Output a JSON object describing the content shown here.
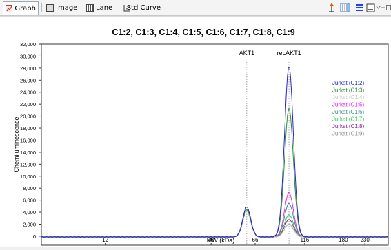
{
  "tabs": [
    {
      "label": "Graph",
      "icon": "graph-icon",
      "active": true
    },
    {
      "label": "Image",
      "icon": "image-icon",
      "active": false
    },
    {
      "label": "Lane",
      "icon": "lane-icon",
      "active": false
    },
    {
      "label": "Std Curve",
      "icon": "std-curve-icon",
      "active": false
    }
  ],
  "toolbar": {
    "icons": [
      "peak-marker-icon",
      "lane-select-icon",
      "legend-toggle-icon",
      "box-select-icon",
      "dropdown-icon",
      "minimize-icon",
      "maximize-icon"
    ]
  },
  "colors": {
    "accent": "#1f3fff",
    "tab_border": "#9aa7b5"
  },
  "chart_data": {
    "type": "line",
    "title": "C1:2, C1:3, C1:4, C1:5, C1:6, C1:7, C1:8, C1:9",
    "xlabel": "MW (kDa)",
    "ylabel": "Chemiluminescence",
    "ylim": [
      -1500,
      32000
    ],
    "xscale": "log",
    "xlim": [
      5.8,
      300
    ],
    "x_ticks": [
      12,
      40,
      66,
      116,
      180,
      230
    ],
    "y_ticks": [
      0,
      2000,
      4000,
      6000,
      8000,
      10000,
      12000,
      14000,
      16000,
      18000,
      20000,
      22000,
      24000,
      26000,
      28000,
      30000,
      32000
    ],
    "y_tick_labels": [
      "0",
      "2,000",
      "4,000",
      "6,000",
      "8,000",
      "10,000",
      "12,000",
      "14,000",
      "16,000",
      "18,000",
      "20,000",
      "22,000",
      "24,000",
      "26,000",
      "28,000",
      "30,000",
      "32,000"
    ],
    "grid": false,
    "legend_position": "right",
    "annotations": [
      {
        "label": "AKT1",
        "x": 60
      },
      {
        "label": "recAKT1",
        "x": 97
      }
    ],
    "peak_positions": [
      60,
      97
    ],
    "series": [
      {
        "name": "Jurkat (C1:2)",
        "color": "#2222cc",
        "peak_values": [
          5000,
          28500
        ]
      },
      {
        "name": "Jurkat (C1:3)",
        "color": "#2e8b2e",
        "peak_values": [
          4600,
          21500
        ]
      },
      {
        "name": "Jurkat (C1:4)",
        "color": "#c8c8c8",
        "peak_values": [
          4400,
          2200
        ]
      },
      {
        "name": "Jurkat (C1:5)",
        "color": "#ee22ee",
        "peak_values": [
          4400,
          7400
        ]
      },
      {
        "name": "Jurkat (C1:6)",
        "color": "#3a8c8c",
        "peak_values": [
          4400,
          5600
        ]
      },
      {
        "name": "Jurkat (C1:7)",
        "color": "#22cc44",
        "peak_values": [
          4400,
          3700
        ]
      },
      {
        "name": "Jurkat (C1:8)",
        "color": "#8a1c8a",
        "peak_values": [
          4400,
          2900
        ]
      },
      {
        "name": "Jurkat (C1:9)",
        "color": "#909090",
        "peak_values": [
          4400,
          2100
        ]
      }
    ]
  }
}
